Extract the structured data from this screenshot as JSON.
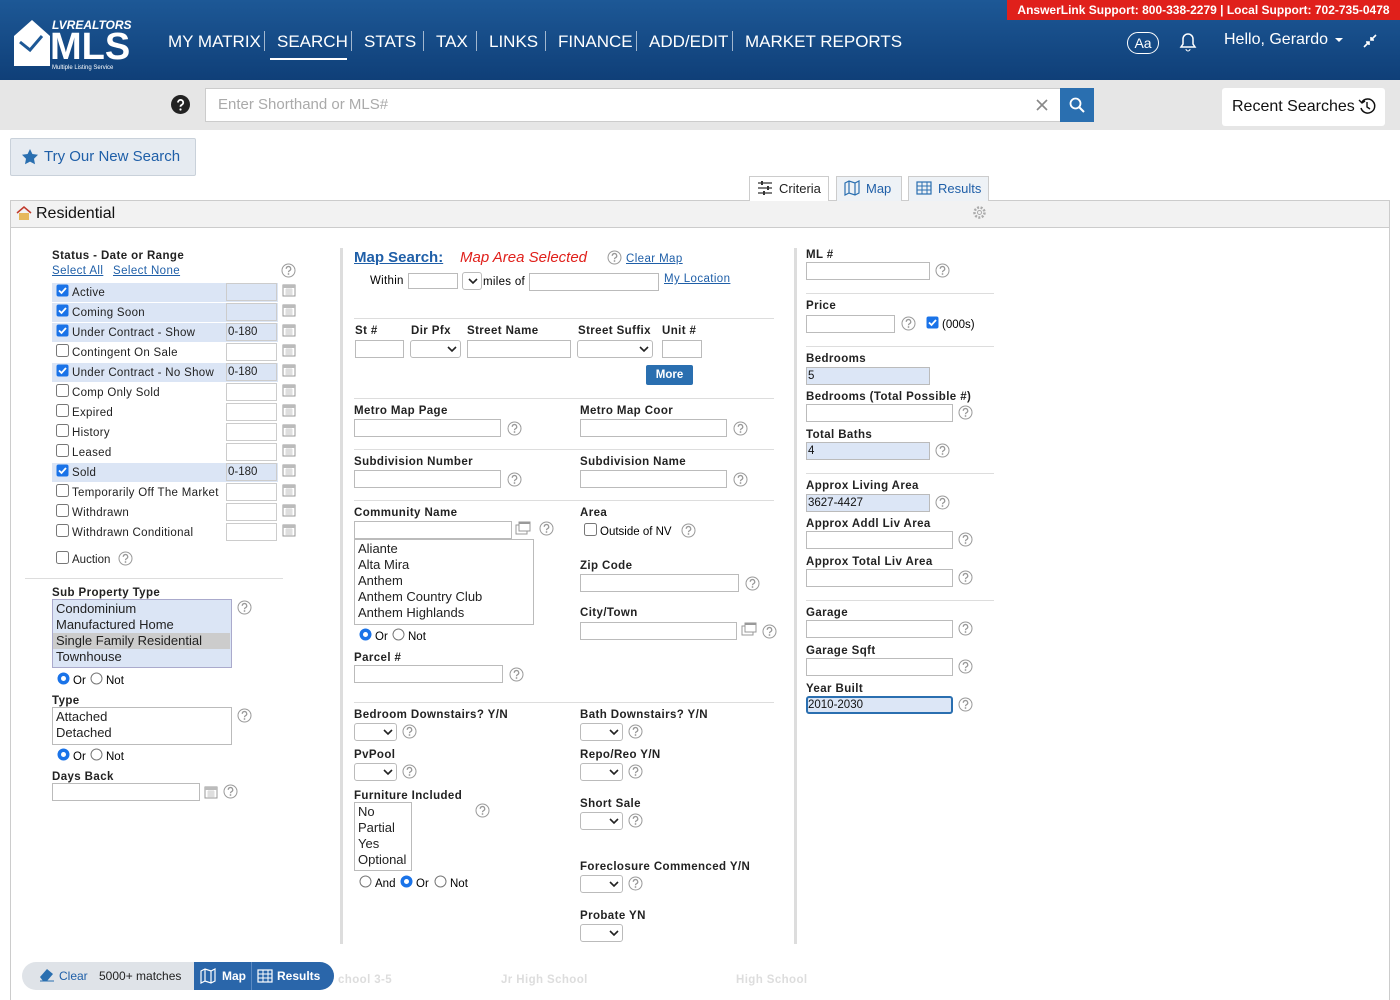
{
  "header": {
    "brand_top": "LVREALTORS",
    "brand_main": "MLS",
    "brand_sub": "Multiple Listing Service",
    "support": "AnswerLink Support: 800-338-2279 | Local Support: 702-735-0478",
    "nav": [
      "MY MATRIX",
      "SEARCH",
      "STATS",
      "TAX",
      "LINKS",
      "FINANCE",
      "ADD/EDIT",
      "MARKET REPORTS"
    ],
    "font_button": "Aa",
    "greeting": "Hello, Gerardo"
  },
  "search_bar": {
    "placeholder": "Enter Shorthand or MLS#",
    "recent_searches": "Recent Searches"
  },
  "try_new_search": "Try Our New Search",
  "tabs": [
    "Criteria",
    "Map",
    "Results"
  ],
  "panel_title": "Residential",
  "logic": {
    "and": "And",
    "or": "Or",
    "not": "Not"
  },
  "status": {
    "heading": "Status - Date or Range",
    "select_all": "Select All",
    "select_none": "Select None",
    "items": [
      {
        "label": "Active",
        "checked": true
      },
      {
        "label": "Coming Soon",
        "checked": true
      },
      {
        "label": "Under Contract - Show",
        "checked": true,
        "range": "0-180"
      },
      {
        "label": "Contingent On Sale",
        "checked": false
      },
      {
        "label": "Under Contract - No Show",
        "checked": true,
        "range": "0-180"
      },
      {
        "label": "Comp Only Sold",
        "checked": false
      },
      {
        "label": "Expired",
        "checked": false
      },
      {
        "label": "History",
        "checked": false
      },
      {
        "label": "Leased",
        "checked": false
      },
      {
        "label": "Sold",
        "checked": true,
        "range": "0-180"
      },
      {
        "label": "Temporarily Off The Market",
        "checked": false
      },
      {
        "label": "Withdrawn",
        "checked": false
      },
      {
        "label": "Withdrawn Conditional",
        "checked": false
      }
    ],
    "auction": "Auction"
  },
  "sub_property_type": {
    "label": "Sub Property Type",
    "options": [
      {
        "text": "Condominium"
      },
      {
        "text": "Manufactured Home"
      },
      {
        "text": "Single Family Residential",
        "selected": true
      },
      {
        "text": "Townhouse"
      }
    ]
  },
  "type_field": {
    "label": "Type",
    "options": [
      "Attached",
      "Detached"
    ]
  },
  "days_back": "Days Back",
  "map_search": {
    "title": "Map Search:",
    "status": "Map Area Selected",
    "clear": "Clear Map",
    "within": "Within",
    "miles_of": "miles of",
    "my_location": "My Location"
  },
  "address": {
    "labels": [
      "St #",
      "Dir Pfx",
      "Street Name",
      "Street Suffix",
      "Unit #"
    ],
    "more": "More"
  },
  "middle_fields": [
    "Metro Map Page",
    "Metro Map Coor",
    "Subdivision Number",
    "Subdivision Name",
    "Parcel #",
    "Zip Code",
    "City/Town"
  ],
  "community": {
    "label": "Community Name",
    "options": [
      "Aliante",
      "Alta Mira",
      "Anthem",
      "Anthem Country Club",
      "Anthem Highlands"
    ]
  },
  "area": {
    "label": "Area",
    "outside": "Outside of NV"
  },
  "select_fields": [
    "Bedroom Downstairs? Y/N",
    "Bath Downstairs? Y/N",
    "PvPool",
    "Repo/Reo Y/N",
    "Short Sale",
    "Foreclosure Commenced Y/N",
    "Probate YN"
  ],
  "furniture": {
    "label": "Furniture Included",
    "options": [
      "No",
      "Partial",
      "Yes",
      "Optional"
    ]
  },
  "right_fields": [
    {
      "label": "ML #"
    },
    {
      "label": "Price",
      "unit": "(000s)"
    },
    {
      "label": "Bedrooms",
      "value": "5"
    },
    {
      "label": "Bedrooms (Total Possible #)"
    },
    {
      "label": "Total Baths",
      "value": "4"
    },
    {
      "label": "Approx Living Area",
      "value": "3627-4427"
    },
    {
      "label": "Approx Addl Liv Area"
    },
    {
      "label": "Approx Total Liv Area"
    },
    {
      "label": "Garage"
    },
    {
      "label": "Garage Sqft"
    },
    {
      "label": "Year Built",
      "value": "2010-2030"
    }
  ],
  "bottom_bar": {
    "clear": "Clear",
    "matches": "5000+ matches",
    "map": "Map",
    "results": "Results",
    "faded": [
      "chool 3-5",
      "Jr High School",
      "High School"
    ]
  }
}
